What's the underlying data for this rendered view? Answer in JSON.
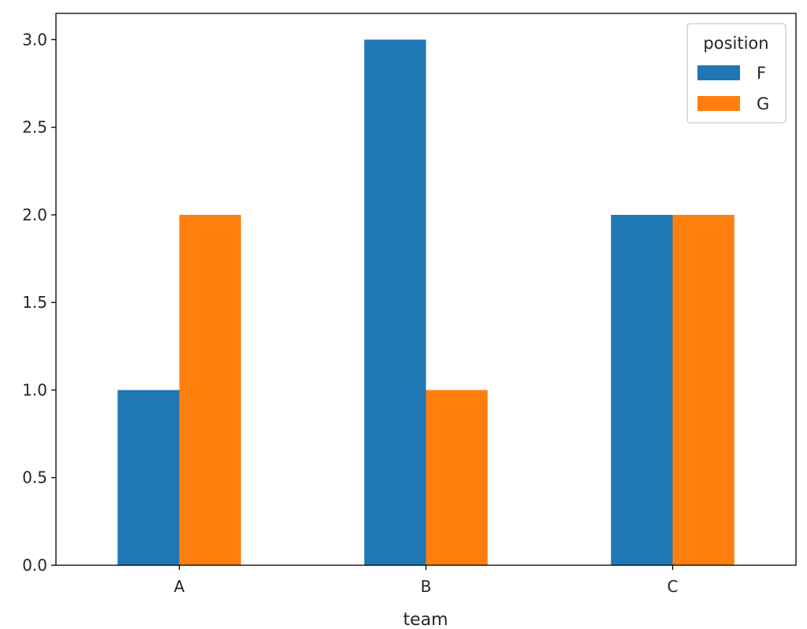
{
  "chart_data": {
    "type": "bar",
    "categories": [
      "A",
      "B",
      "C"
    ],
    "series": [
      {
        "name": "F",
        "color": "#1f77b4",
        "values": [
          1,
          3,
          2
        ]
      },
      {
        "name": "G",
        "color": "#ff7f0e",
        "values": [
          2,
          1,
          2
        ]
      }
    ],
    "title": "",
    "xlabel": "team",
    "ylabel": "",
    "ylim": [
      0,
      3.15
    ],
    "yticks": [
      "0.0",
      "0.5",
      "1.0",
      "1.5",
      "2.0",
      "2.5",
      "3.0"
    ],
    "grid": false,
    "legend": {
      "title": "position",
      "placement": "top-right"
    }
  }
}
